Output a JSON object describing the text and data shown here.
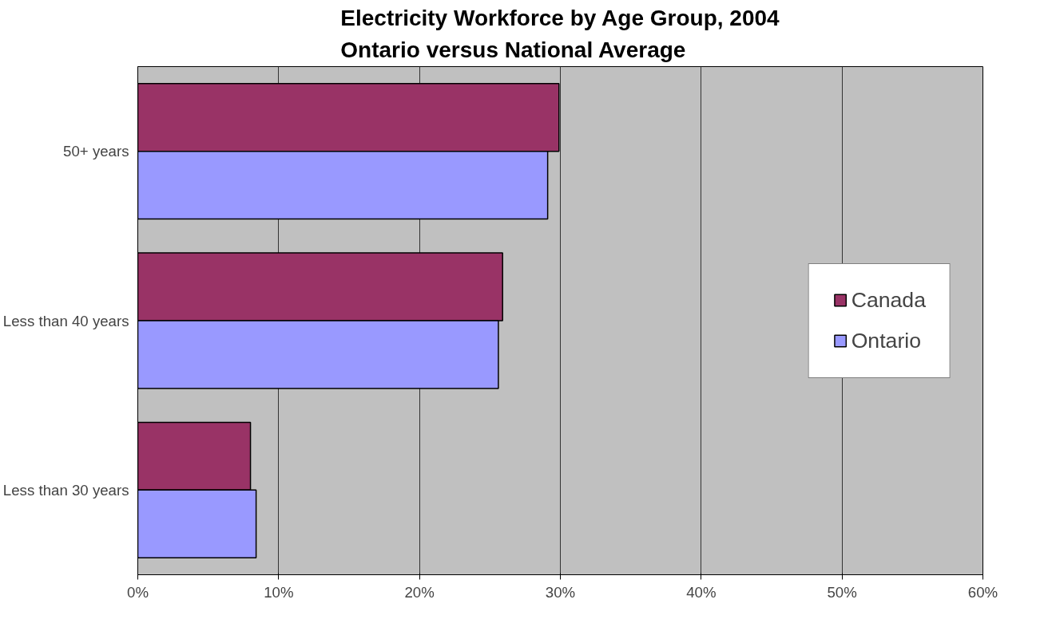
{
  "chart_data": {
    "type": "bar",
    "orientation": "horizontal",
    "title": "Electricity Workforce by Age Group, 2004\nOntario versus National Average",
    "categories": [
      "50+ years",
      "Less than 40 years",
      "Less than 30 years"
    ],
    "series": [
      {
        "name": "Canada",
        "color": "#993366",
        "values": [
          29.9,
          25.9,
          8.0
        ]
      },
      {
        "name": "Ontario",
        "color": "#9999ff",
        "values": [
          29.1,
          25.6,
          8.4
        ]
      }
    ],
    "xlim": [
      0,
      60
    ],
    "xticks": [
      {
        "value": 0,
        "label": "0%"
      },
      {
        "value": 10,
        "label": "10%"
      },
      {
        "value": 20,
        "label": "20%"
      },
      {
        "value": 30,
        "label": "30%"
      },
      {
        "value": 40,
        "label": "40%"
      },
      {
        "value": 50,
        "label": "50%"
      },
      {
        "value": 60,
        "label": "60%"
      }
    ],
    "grid": "x",
    "legend": "right"
  }
}
